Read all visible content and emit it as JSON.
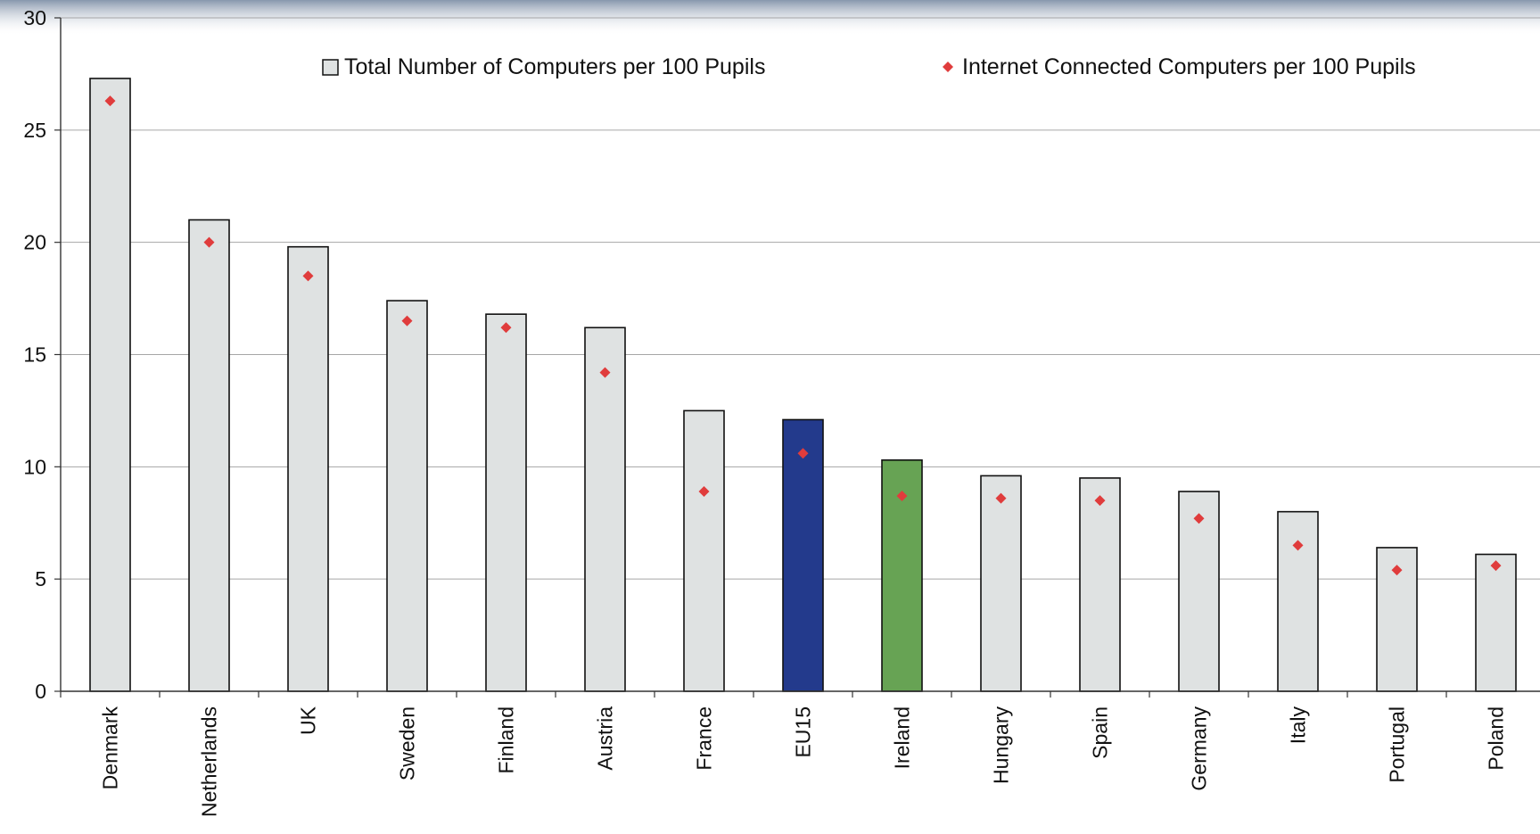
{
  "chart_data": {
    "type": "bar",
    "categories": [
      "Denmark",
      "Netherlands",
      "UK",
      "Sweden",
      "Finland",
      "Austria",
      "France",
      "EU15",
      "Ireland",
      "Hungary",
      "Spain",
      "Germany",
      "Italy",
      "Portugal",
      "Poland"
    ],
    "series": [
      {
        "name": "Total Number of Computers per 100 Pupils",
        "type": "bar",
        "values": [
          27.3,
          21.0,
          19.8,
          17.4,
          16.8,
          16.2,
          12.5,
          12.1,
          10.3,
          9.6,
          9.5,
          8.9,
          8.0,
          6.4,
          6.1
        ],
        "color": "#dfe2e2",
        "highlight_colors": {
          "EU15": "#233a8c",
          "Ireland": "#67a354"
        }
      },
      {
        "name": "Internet Connected Computers per 100 Pupils",
        "type": "scatter",
        "marker": "diamond",
        "values": [
          26.3,
          20.0,
          18.5,
          16.5,
          16.2,
          14.2,
          8.9,
          10.6,
          8.7,
          8.6,
          8.5,
          7.7,
          6.5,
          5.4,
          5.6
        ],
        "color": "#e03c3c"
      }
    ],
    "title": "",
    "xlabel": "",
    "ylabel": "",
    "ylim": [
      0,
      30
    ],
    "yticks": [
      0,
      5,
      10,
      15,
      20,
      25,
      30
    ],
    "grid": true,
    "legend": "top-right"
  }
}
